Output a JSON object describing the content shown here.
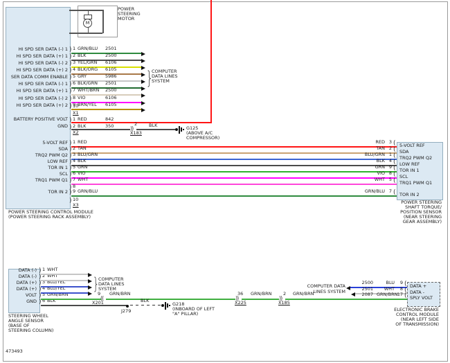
{
  "figure_number": "473493",
  "pscm": {
    "label_lines": [
      "POWER STEERING CONTROL MODULE",
      "(POWER STEERING RACK ASSEMBLY)"
    ],
    "motor": {
      "symbol": "M",
      "label_lines": [
        "POWER",
        "STEERING",
        "MOTOR"
      ]
    },
    "x1": {
      "connector": "X1",
      "empty_pin": "10",
      "dest_lines": [
        "COMPUTER",
        "DATA LINES",
        "SYSTEM"
      ],
      "rows": [
        {
          "signal": "HI SPD SER DATA (-) 1",
          "pin": "1",
          "color": "GRN/BLU",
          "circuit": "2501",
          "hex": "#2e8b3e"
        },
        {
          "signal": "HI SPD SER DATA (+) 1",
          "pin": "2",
          "color": "BLK",
          "circuit": "2500",
          "hex": "#4a4a4a"
        },
        {
          "signal": "HI SPD SER DATA (-) 2",
          "pin": "3",
          "color": "YEL/GRN",
          "circuit": "6106",
          "hex": "#d8e000"
        },
        {
          "signal": "HI SPD SER DATA (+) 2",
          "pin": "4",
          "color": "BLK/ORG",
          "circuit": "6105",
          "hex": "#a87848"
        },
        {
          "signal": "SER DATA COMM ENABLE",
          "pin": "5",
          "color": "GRY",
          "circuit": "5986",
          "hex": "#c6c6c6"
        },
        {
          "signal": "HI SPD SER DATA (-) 1",
          "pin": "6",
          "color": "BLK/GRN",
          "circuit": "2501",
          "hex": "#226b30"
        },
        {
          "signal": "HI SPD SER DATA (+) 1",
          "pin": "7",
          "color": "WHT/BRN",
          "circuit": "2500",
          "hex": "#d8cdbb"
        },
        {
          "signal": "HI SPD SER DATA (-) 2",
          "pin": "8",
          "color": "VIO",
          "circuit": "6106",
          "hex": "#ff00ff"
        },
        {
          "signal": "HI SPD SER DATA (+) 2",
          "pin": "9",
          "color": "BRN/YEL",
          "circuit": "6105",
          "hex": "#b89000"
        }
      ]
    },
    "x2": {
      "connector": "X2",
      "rows": [
        {
          "signal": "BATTERY POSITIVE VOLT",
          "pin": "1",
          "color": "RED",
          "circuit": "842",
          "hex": "#ff1414"
        },
        {
          "signal": "GND",
          "pin": "2",
          "color": "BLK",
          "circuit": "350",
          "hex": "#4a4a4a"
        }
      ],
      "inline_connector": {
        "pin": "2",
        "name": "X183",
        "wire_color": "BLK"
      },
      "ground": {
        "name": "G125",
        "loc_lines": [
          "(ABOVE A/C",
          "COMPRESSOR)"
        ]
      }
    },
    "x3": {
      "connector": "X3",
      "empty_pins": [
        "8",
        "10"
      ],
      "rows": [
        {
          "signal": "5-VOLT REF",
          "pin": "1",
          "color": "RED",
          "sensor_pin": "3",
          "hex": "#ff1414"
        },
        {
          "signal": "SDA",
          "pin": "2",
          "color": "TAN",
          "sensor_pin": "2",
          "hex": "#c9a273"
        },
        {
          "signal": "TRQ2 PWM Q2",
          "pin": "3",
          "color": "BLU/GRN",
          "sensor_pin": "1",
          "hex": "#3c64d2"
        },
        {
          "signal": "LOW REF",
          "pin": "4",
          "color": "BLK",
          "sensor_pin": "4",
          "hex": "#4a4a4a"
        },
        {
          "signal": "TOR IN 1",
          "pin": "5",
          "color": "GRN",
          "sensor_pin": "9",
          "hex": "#2db32d"
        },
        {
          "signal": "SCL",
          "pin": "6",
          "color": "VIO",
          "sensor_pin": "8",
          "hex": "#ff00ff"
        },
        {
          "signal": "TRQ1 PWM Q1",
          "pin": "7",
          "color": "WHT",
          "sensor_pin": "5",
          "hex": "#ff46da"
        },
        {
          "signal": "TOR IN 2",
          "pin": "9",
          "color": "GRN/BLU",
          "sensor_pin": "7",
          "hex": "#2e8b3e"
        }
      ]
    }
  },
  "torque_sensor": {
    "label_lines": [
      "POWER STEERING",
      "SHAFT TORQUE/",
      "POSITION SENSOR",
      "(NEAR STEERING",
      "GEAR ASSEMBLY)"
    ]
  },
  "swas": {
    "label_lines": [
      "STEERING WHEEL",
      "ANGLE SENSOR",
      "(BASE OF",
      "STEERING COLUMN)"
    ],
    "dest_lines": [
      "COMPUTER",
      "DATA LINES",
      "SYSTEM"
    ],
    "rows": [
      {
        "signal": "DATA (-)",
        "pin": "1",
        "color": "WHT",
        "hex": "#c6c6c6"
      },
      {
        "signal": "DATA (-)",
        "pin": "2",
        "color": "WHT",
        "hex": "#c6c6c6"
      },
      {
        "signal": "DATA (+)",
        "pin": "3",
        "color": "BLU/YEL",
        "hex": "#3c52cc"
      },
      {
        "signal": "DATA (+)",
        "pin": "4",
        "color": "BLU/YEL",
        "hex": "#3c52cc"
      },
      {
        "signal": "VOLT",
        "pin": "5",
        "color": "GRN/BRN",
        "hex": "#3faf3f"
      },
      {
        "signal": "GND",
        "pin": "6",
        "color": "BLK",
        "hex": "#4a4a4a"
      }
    ]
  },
  "volt_path": {
    "inline_connectors": [
      {
        "pin": "9",
        "name": "X201",
        "wire_color": "GRN/BRN"
      },
      {
        "pin": "36",
        "name": "X225",
        "wire_color": "GRN/BRN"
      },
      {
        "pin": "2",
        "name": "X185",
        "wire_color": "GRN/BRN"
      }
    ]
  },
  "gnd_path": {
    "wire_color": "BLK",
    "splice": "J279",
    "ground": {
      "name": "G218",
      "loc_lines": [
        "(INBOARD OF LEFT",
        "\"A\" PILLAR)"
      ]
    }
  },
  "ebcm": {
    "label_lines": [
      "ELECTRONIC BRAKE",
      "CONTROL MODULE",
      "(NEAR LEFT SIDE",
      "OF TRANSMISSION)"
    ],
    "dest_lines": [
      "COMPUTER DATA",
      "LINES SYSTEM"
    ],
    "rows": [
      {
        "signal": "DATA +",
        "pin": "9",
        "color": "BLU",
        "circuit": "2500",
        "hex": "#2840d8"
      },
      {
        "signal": "DATA -",
        "pin": "8",
        "color": "WHT",
        "circuit": "2501",
        "hex": "#c6c6c6"
      },
      {
        "signal": "SPLY VOLT",
        "pin": "17",
        "color": "GRN/BRN",
        "circuit": "2087",
        "hex": "#3faf3f"
      }
    ]
  }
}
